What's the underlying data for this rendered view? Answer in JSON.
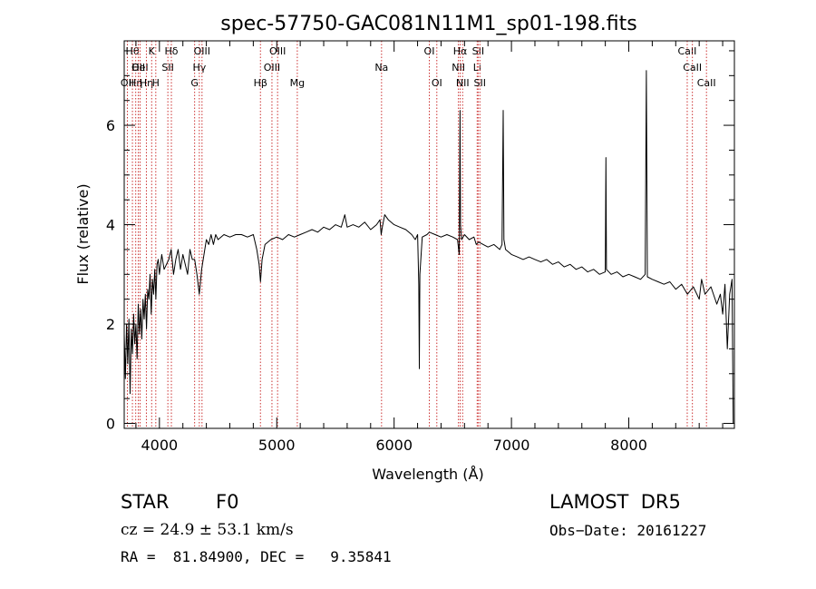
{
  "chart_data": {
    "type": "line",
    "title": "spec-57750-GAC081N11M1_sp01-198.fits",
    "xlabel": "Wavelength (Å)",
    "ylabel": "Flux (relative)",
    "xlim": [
      3700,
      8900
    ],
    "ylim": [
      -0.1,
      7.7
    ],
    "x_ticks": [
      4000,
      5000,
      6000,
      7000,
      8000
    ],
    "y_ticks": [
      0,
      2,
      4,
      6
    ],
    "grid": false,
    "line_color": "#000000",
    "marker_color": "#cc3333",
    "series": [
      {
        "values": [
          [
            3700,
            1.8
          ],
          [
            3710,
            0.9
          ],
          [
            3720,
            2.0
          ],
          [
            3730,
            1.2
          ],
          [
            3740,
            2.1
          ],
          [
            3750,
            0.6
          ],
          [
            3760,
            1.9
          ],
          [
            3770,
            1.4
          ],
          [
            3780,
            2.2
          ],
          [
            3790,
            1.6
          ],
          [
            3800,
            2.0
          ],
          [
            3810,
            1.3
          ],
          [
            3820,
            2.4
          ],
          [
            3830,
            1.8
          ],
          [
            3840,
            2.3
          ],
          [
            3850,
            1.7
          ],
          [
            3860,
            2.5
          ],
          [
            3870,
            2.1
          ],
          [
            3880,
            2.6
          ],
          [
            3890,
            1.9
          ],
          [
            3900,
            2.7
          ],
          [
            3910,
            2.5
          ],
          [
            3920,
            3.0
          ],
          [
            3930,
            2.2
          ],
          [
            3940,
            2.9
          ],
          [
            3950,
            2.6
          ],
          [
            3960,
            3.1
          ],
          [
            3970,
            2.5
          ],
          [
            3980,
            3.2
          ],
          [
            3990,
            3.3
          ],
          [
            4000,
            3.0
          ],
          [
            4020,
            3.4
          ],
          [
            4040,
            3.1
          ],
          [
            4060,
            3.2
          ],
          [
            4080,
            3.3
          ],
          [
            4100,
            3.5
          ],
          [
            4120,
            3.0
          ],
          [
            4140,
            3.3
          ],
          [
            4160,
            3.5
          ],
          [
            4180,
            3.1
          ],
          [
            4200,
            3.4
          ],
          [
            4220,
            3.2
          ],
          [
            4240,
            3.0
          ],
          [
            4260,
            3.5
          ],
          [
            4280,
            3.3
          ],
          [
            4300,
            3.3
          ],
          [
            4320,
            3.0
          ],
          [
            4340,
            2.6
          ],
          [
            4360,
            3.1
          ],
          [
            4380,
            3.4
          ],
          [
            4400,
            3.7
          ],
          [
            4420,
            3.6
          ],
          [
            4440,
            3.8
          ],
          [
            4460,
            3.6
          ],
          [
            4480,
            3.8
          ],
          [
            4500,
            3.7
          ],
          [
            4550,
            3.8
          ],
          [
            4600,
            3.75
          ],
          [
            4650,
            3.8
          ],
          [
            4700,
            3.8
          ],
          [
            4750,
            3.75
          ],
          [
            4800,
            3.8
          ],
          [
            4830,
            3.5
          ],
          [
            4850,
            3.2
          ],
          [
            4861,
            2.85
          ],
          [
            4875,
            3.3
          ],
          [
            4900,
            3.6
          ],
          [
            4950,
            3.7
          ],
          [
            5000,
            3.75
          ],
          [
            5050,
            3.7
          ],
          [
            5100,
            3.8
          ],
          [
            5150,
            3.75
          ],
          [
            5200,
            3.8
          ],
          [
            5250,
            3.85
          ],
          [
            5300,
            3.9
          ],
          [
            5350,
            3.85
          ],
          [
            5400,
            3.95
          ],
          [
            5450,
            3.9
          ],
          [
            5500,
            4.0
          ],
          [
            5550,
            3.95
          ],
          [
            5580,
            4.2
          ],
          [
            5600,
            3.95
          ],
          [
            5650,
            4.0
          ],
          [
            5700,
            3.95
          ],
          [
            5750,
            4.05
          ],
          [
            5800,
            3.9
          ],
          [
            5850,
            4.0
          ],
          [
            5880,
            4.1
          ],
          [
            5890,
            3.8
          ],
          [
            5900,
            3.95
          ],
          [
            5920,
            4.2
          ],
          [
            5950,
            4.1
          ],
          [
            6000,
            4.0
          ],
          [
            6050,
            3.95
          ],
          [
            6100,
            3.9
          ],
          [
            6150,
            3.8
          ],
          [
            6180,
            3.7
          ],
          [
            6200,
            3.8
          ],
          [
            6210,
            2.8
          ],
          [
            6215,
            1.1
          ],
          [
            6220,
            3.0
          ],
          [
            6240,
            3.75
          ],
          [
            6280,
            3.8
          ],
          [
            6300,
            3.85
          ],
          [
            6350,
            3.8
          ],
          [
            6400,
            3.75
          ],
          [
            6450,
            3.8
          ],
          [
            6500,
            3.75
          ],
          [
            6540,
            3.7
          ],
          [
            6555,
            3.4
          ],
          [
            6562,
            6.3
          ],
          [
            6566,
            4.0
          ],
          [
            6575,
            3.7
          ],
          [
            6600,
            3.8
          ],
          [
            6640,
            3.7
          ],
          [
            6680,
            3.75
          ],
          [
            6700,
            3.6
          ],
          [
            6720,
            3.65
          ],
          [
            6760,
            3.6
          ],
          [
            6800,
            3.55
          ],
          [
            6850,
            3.6
          ],
          [
            6900,
            3.5
          ],
          [
            6920,
            3.6
          ],
          [
            6930,
            6.3
          ],
          [
            6936,
            3.7
          ],
          [
            6950,
            3.5
          ],
          [
            7000,
            3.4
          ],
          [
            7050,
            3.35
          ],
          [
            7100,
            3.3
          ],
          [
            7150,
            3.35
          ],
          [
            7200,
            3.3
          ],
          [
            7250,
            3.25
          ],
          [
            7300,
            3.3
          ],
          [
            7350,
            3.2
          ],
          [
            7400,
            3.25
          ],
          [
            7450,
            3.15
          ],
          [
            7500,
            3.2
          ],
          [
            7550,
            3.1
          ],
          [
            7600,
            3.15
          ],
          [
            7650,
            3.05
          ],
          [
            7700,
            3.1
          ],
          [
            7750,
            3.0
          ],
          [
            7800,
            3.05
          ],
          [
            7805,
            5.35
          ],
          [
            7810,
            3.1
          ],
          [
            7850,
            3.0
          ],
          [
            7900,
            3.05
          ],
          [
            7950,
            2.95
          ],
          [
            8000,
            3.0
          ],
          [
            8050,
            2.95
          ],
          [
            8100,
            2.9
          ],
          [
            8140,
            3.0
          ],
          [
            8150,
            7.1
          ],
          [
            8158,
            2.95
          ],
          [
            8200,
            2.9
          ],
          [
            8250,
            2.85
          ],
          [
            8300,
            2.8
          ],
          [
            8350,
            2.85
          ],
          [
            8400,
            2.7
          ],
          [
            8450,
            2.8
          ],
          [
            8500,
            2.6
          ],
          [
            8550,
            2.75
          ],
          [
            8600,
            2.5
          ],
          [
            8620,
            2.9
          ],
          [
            8650,
            2.6
          ],
          [
            8700,
            2.75
          ],
          [
            8750,
            2.4
          ],
          [
            8780,
            2.6
          ],
          [
            8800,
            2.2
          ],
          [
            8820,
            2.8
          ],
          [
            8840,
            1.5
          ],
          [
            8860,
            2.6
          ],
          [
            8880,
            2.9
          ],
          [
            8890,
            0.0
          ]
        ]
      }
    ],
    "line_markers": [
      {
        "wl": 3727,
        "label": "OII",
        "row": 3
      },
      {
        "wl": 3770,
        "label": "Hθ",
        "row": 1
      },
      {
        "wl": 3798,
        "label": "Hη",
        "row": 3
      },
      {
        "wl": 3820,
        "label": "OII",
        "row": 2
      },
      {
        "wl": 3835,
        "label": "HeI",
        "row": 2
      },
      {
        "wl": 3889,
        "label": "Hη",
        "row": 3
      },
      {
        "wl": 3934,
        "label": "K",
        "row": 1
      },
      {
        "wl": 3969,
        "label": "H",
        "row": 3
      },
      {
        "wl": 4072,
        "label": "SII",
        "row": 2
      },
      {
        "wl": 4102,
        "label": "Hδ",
        "row": 1
      },
      {
        "wl": 4300,
        "label": "G",
        "row": 3
      },
      {
        "wl": 4340,
        "label": "Hγ",
        "row": 2
      },
      {
        "wl": 4363,
        "label": "OIII",
        "row": 1
      },
      {
        "wl": 4861,
        "label": "Hβ",
        "row": 3
      },
      {
        "wl": 4959,
        "label": "OIII",
        "row": 2
      },
      {
        "wl": 5007,
        "label": "OIII",
        "row": 1
      },
      {
        "wl": 5175,
        "label": "Mg",
        "row": 3
      },
      {
        "wl": 5893,
        "label": "Na",
        "row": 2
      },
      {
        "wl": 6300,
        "label": "OI",
        "row": 1
      },
      {
        "wl": 6364,
        "label": "OI",
        "row": 3
      },
      {
        "wl": 6548,
        "label": "NII",
        "row": 2
      },
      {
        "wl": 6563,
        "label": "Hα",
        "row": 1
      },
      {
        "wl": 6584,
        "label": "NII",
        "row": 3
      },
      {
        "wl": 6708,
        "label": "Li",
        "row": 2
      },
      {
        "wl": 6716,
        "label": "SII",
        "row": 1
      },
      {
        "wl": 6731,
        "label": "SII",
        "row": 3
      },
      {
        "wl": 8498,
        "label": "CaII",
        "row": 1
      },
      {
        "wl": 8542,
        "label": "CaII",
        "row": 2
      },
      {
        "wl": 8662,
        "label": "CaII",
        "row": 3
      }
    ]
  },
  "info": {
    "object_class": "STAR",
    "subclass": "F0",
    "redshift_text": "cz = 24.9 ± 53.1 km/s",
    "survey": "LAMOST  DR5",
    "obs_date": "Obs−Date: 20161227",
    "coords": "RA =  81.84900, DEC =   9.35841"
  }
}
